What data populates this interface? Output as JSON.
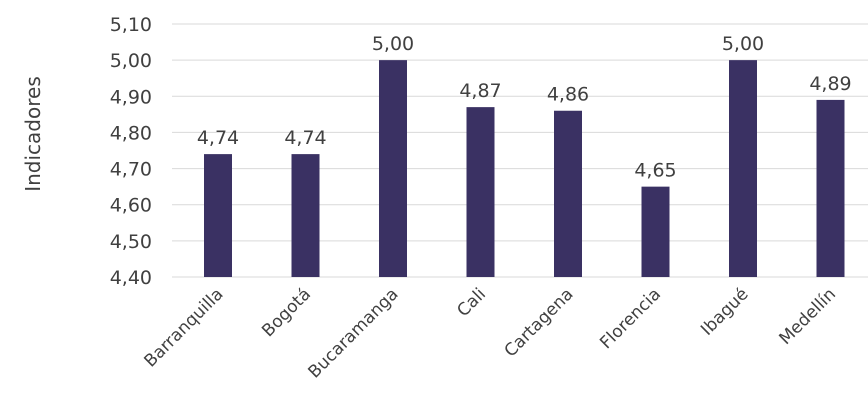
{
  "chart_data": {
    "type": "bar",
    "categories": [
      "Barranquilla",
      "Bogotá",
      "Bucaramanga",
      "Cali",
      "Cartagena",
      "Florencia",
      "Ibagué",
      "Medellín"
    ],
    "values": [
      4.74,
      4.74,
      5.0,
      4.87,
      4.86,
      4.65,
      5.0,
      4.89
    ],
    "data_labels": [
      "4,74",
      "4,74",
      "5,00",
      "4,87",
      "4,86",
      "4,65",
      "5,00",
      "4,89"
    ],
    "ylabel": "Indicadores",
    "xlabel": "",
    "ylim": [
      4.4,
      5.1
    ],
    "yticks": [
      4.4,
      4.5,
      4.6,
      4.7,
      4.8,
      4.9,
      5.0,
      5.1
    ],
    "ytick_labels": [
      "4,40",
      "4,50",
      "4,60",
      "4,70",
      "4,80",
      "4,90",
      "5,00",
      "5,10"
    ],
    "grid": true,
    "bar_color": "#3a3163",
    "text_color": "#404040",
    "grid_color": "#d9d9d9"
  }
}
